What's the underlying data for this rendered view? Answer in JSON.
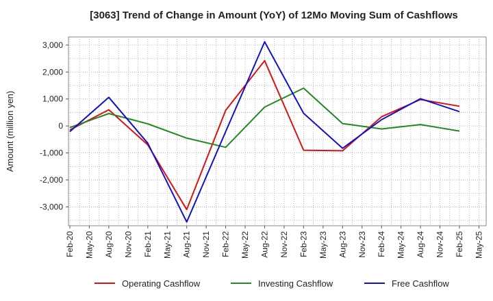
{
  "chart_data": {
    "type": "line",
    "title": "[3063]  Trend of Change in Amount (YoY) of 12Mo Moving Sum of Cashflows",
    "xlabel": "",
    "ylabel": "Amount (million yen)",
    "ylim": [
      -3700,
      3300
    ],
    "yticks": [
      3000,
      2000,
      1000,
      0,
      -1000,
      -2000,
      -3000
    ],
    "ytick_labels": [
      "3,000",
      "2,000",
      "1,000",
      "0",
      "-1,000",
      "-2,000",
      "-3,000"
    ],
    "categories": [
      "Feb-20",
      "May-20",
      "Aug-20",
      "Nov-20",
      "Feb-21",
      "May-21",
      "Aug-21",
      "Nov-21",
      "Feb-22",
      "May-22",
      "Aug-22",
      "Nov-22",
      "Feb-23",
      "May-23",
      "Aug-23",
      "Nov-23",
      "Feb-24",
      "May-24",
      "Aug-24",
      "Nov-24",
      "Feb-25",
      "May-25"
    ],
    "grid": true,
    "legend_position": "bottom",
    "series": [
      {
        "name": "Operating Cashflow",
        "color": "#dd1111",
        "points": [
          [
            0,
            -150
          ],
          [
            2,
            600
          ],
          [
            4,
            -700
          ],
          [
            6,
            -3100
          ],
          [
            8,
            580
          ],
          [
            10,
            2420
          ],
          [
            12,
            -900
          ],
          [
            14,
            -920
          ],
          [
            16,
            340
          ],
          [
            18,
            980
          ],
          [
            20,
            730
          ]
        ]
      },
      {
        "name": "Investing Cashflow",
        "color": "#228822",
        "points": [
          [
            0,
            -60
          ],
          [
            2,
            460
          ],
          [
            4,
            80
          ],
          [
            6,
            -450
          ],
          [
            8,
            -790
          ],
          [
            10,
            700
          ],
          [
            12,
            1400
          ],
          [
            14,
            90
          ],
          [
            16,
            -110
          ],
          [
            18,
            50
          ],
          [
            20,
            -190
          ]
        ]
      },
      {
        "name": "Free Cashflow",
        "color": "#1111cc",
        "points": [
          [
            0,
            -210
          ],
          [
            2,
            1060
          ],
          [
            4,
            -640
          ],
          [
            6,
            -3560
          ],
          [
            8,
            -210
          ],
          [
            10,
            3120
          ],
          [
            12,
            470
          ],
          [
            14,
            -830
          ],
          [
            16,
            230
          ],
          [
            18,
            1010
          ],
          [
            20,
            530
          ]
        ]
      }
    ]
  }
}
